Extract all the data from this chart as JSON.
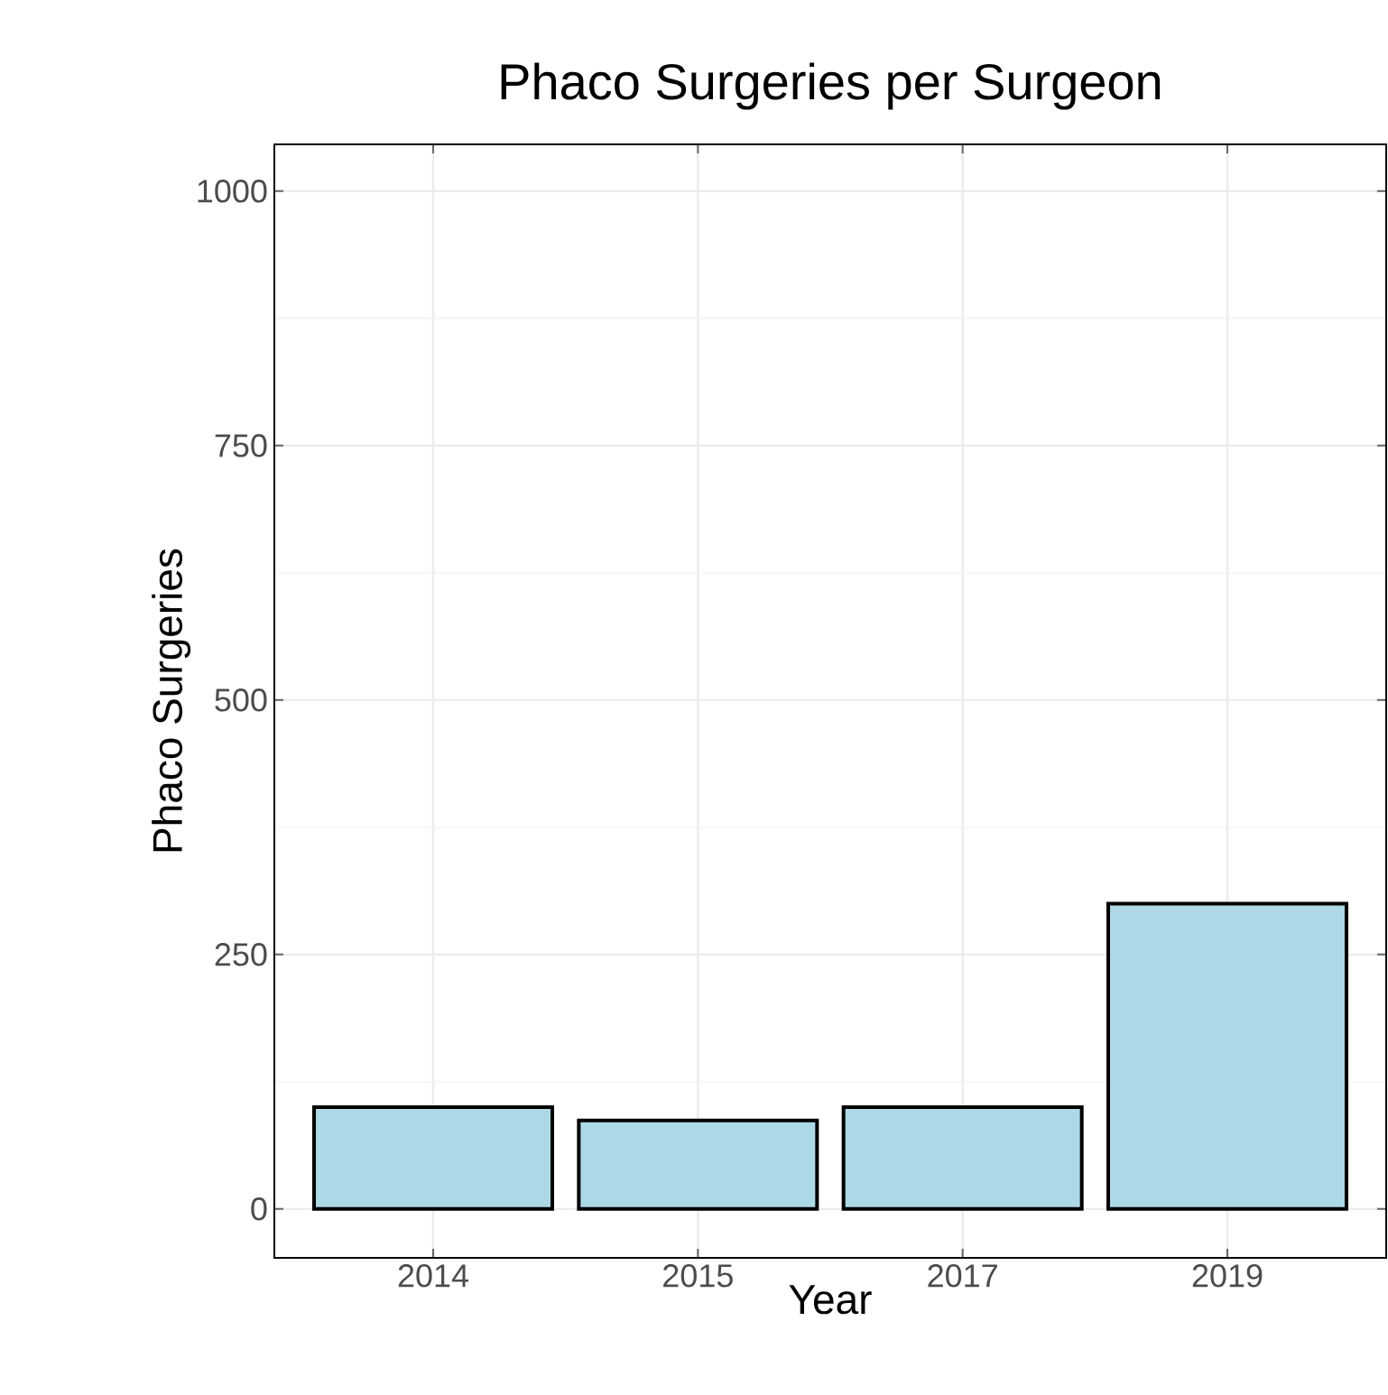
{
  "chart_data": {
    "type": "bar",
    "title": "Phaco Surgeries per Surgeon",
    "xlabel": "Year",
    "ylabel": "Phaco Surgeries",
    "categories": [
      "2014",
      "2015",
      "2017",
      "2019"
    ],
    "values": [
      100,
      87,
      100,
      300
    ],
    "color": "#add8e6",
    "ylim": [
      -48,
      1046
    ],
    "yticks": [
      0,
      250,
      500,
      750,
      1000
    ],
    "grid": true
  }
}
